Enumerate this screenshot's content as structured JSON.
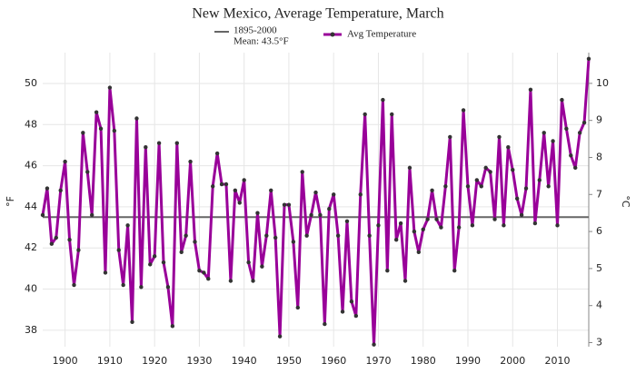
{
  "chart_data": {
    "type": "line",
    "title": "New Mexico, Average Temperature, March",
    "ylabel": "°F",
    "y2label": "°C",
    "mean_line": {
      "name": "1895-2000",
      "label": "Mean: 43.5°F",
      "value": 43.5,
      "color": "#666666"
    },
    "x": [
      1895,
      1896,
      1897,
      1898,
      1899,
      1900,
      1901,
      1902,
      1903,
      1904,
      1905,
      1906,
      1907,
      1908,
      1909,
      1910,
      1911,
      1912,
      1913,
      1914,
      1915,
      1916,
      1917,
      1918,
      1919,
      1920,
      1921,
      1922,
      1923,
      1924,
      1925,
      1926,
      1927,
      1928,
      1929,
      1930,
      1931,
      1932,
      1933,
      1934,
      1935,
      1936,
      1937,
      1938,
      1939,
      1940,
      1941,
      1942,
      1943,
      1944,
      1945,
      1946,
      1947,
      1948,
      1949,
      1950,
      1951,
      1952,
      1953,
      1954,
      1955,
      1956,
      1957,
      1958,
      1959,
      1960,
      1961,
      1962,
      1963,
      1964,
      1965,
      1966,
      1967,
      1968,
      1969,
      1970,
      1971,
      1972,
      1973,
      1974,
      1975,
      1976,
      1977,
      1978,
      1979,
      1980,
      1981,
      1982,
      1983,
      1984,
      1985,
      1986,
      1987,
      1988,
      1989,
      1990,
      1991,
      1992,
      1993,
      1994,
      1995,
      1996,
      1997,
      1998,
      1999,
      2000,
      2001,
      2002,
      2003,
      2004,
      2005,
      2006,
      2007,
      2008,
      2009,
      2010,
      2011,
      2012,
      2013,
      2014,
      2015,
      2016,
      2017
    ],
    "series": [
      {
        "name": "Avg Temperature",
        "color": "#990099",
        "marker_color": "#333333",
        "values": [
          43.6,
          44.9,
          42.2,
          42.5,
          44.8,
          46.2,
          42.4,
          40.2,
          41.9,
          47.6,
          45.7,
          43.6,
          48.6,
          47.8,
          40.8,
          49.8,
          47.7,
          41.9,
          40.2,
          43.1,
          38.4,
          48.3,
          40.1,
          46.9,
          41.2,
          41.6,
          47.1,
          41.3,
          40.1,
          38.2,
          47.1,
          41.8,
          42.6,
          46.2,
          42.3,
          40.9,
          40.8,
          40.5,
          45.0,
          46.6,
          45.1,
          45.1,
          40.4,
          44.8,
          44.2,
          45.3,
          41.3,
          40.4,
          43.7,
          41.1,
          42.6,
          44.8,
          42.5,
          37.7,
          44.1,
          44.1,
          42.3,
          39.1,
          45.7,
          42.6,
          43.6,
          44.7,
          43.6,
          38.3,
          43.9,
          44.6,
          42.6,
          38.9,
          43.3,
          39.4,
          38.7,
          44.6,
          48.5,
          42.6,
          37.3,
          43.1,
          49.2,
          40.9,
          48.5,
          42.4,
          43.2,
          40.4,
          45.9,
          42.8,
          41.8,
          42.9,
          43.4,
          44.8,
          43.4,
          43.0,
          45.0,
          47.4,
          40.9,
          43.0,
          48.7,
          45.0,
          43.1,
          45.3,
          45.0,
          45.9,
          45.7,
          43.4,
          47.4,
          43.1,
          46.9,
          45.8,
          44.4,
          43.6,
          44.9,
          49.7,
          43.2,
          45.3,
          47.6,
          45.0,
          47.2,
          43.1,
          49.2,
          47.8,
          46.5,
          45.9,
          47.6,
          48.1,
          51.2
        ]
      }
    ],
    "xlim": [
      1895,
      2017
    ],
    "xticks": [
      1900,
      1910,
      1920,
      1930,
      1940,
      1950,
      1960,
      1970,
      1980,
      1990,
      2000,
      2010
    ],
    "ylim": [
      37.2,
      51.5
    ],
    "yticks": [
      38,
      40,
      42,
      44,
      46,
      48,
      50
    ],
    "y2lim": [
      2.89,
      10.83
    ],
    "y2ticks": [
      3,
      4,
      5,
      6,
      7,
      8,
      9,
      10
    ],
    "grid": true
  }
}
